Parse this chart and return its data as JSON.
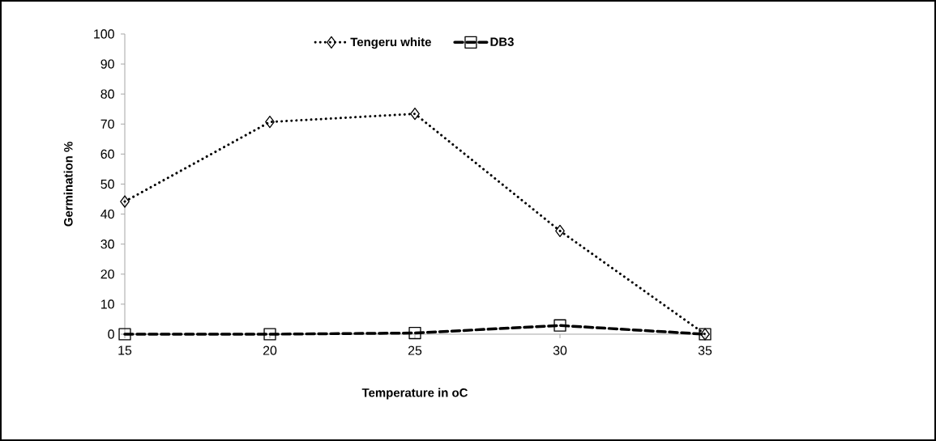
{
  "chart_data": {
    "type": "line",
    "xlabel": "Temperature in oC",
    "ylabel": "Germination %",
    "x": [
      15,
      20,
      25,
      30,
      35
    ],
    "xlim": [
      15,
      35
    ],
    "xticks": [
      15,
      20,
      25,
      30,
      35
    ],
    "ylim": [
      0,
      100
    ],
    "yticks": [
      0,
      10,
      20,
      30,
      40,
      50,
      60,
      70,
      80,
      90,
      100
    ],
    "grid": false,
    "legend": "top",
    "series": [
      {
        "name": "Tengeru white",
        "color": "#000000",
        "values": [
          44.2,
          70.7,
          73.4,
          34.4,
          0
        ],
        "marker": "diamond",
        "line_style": "dotted"
      },
      {
        "name": "DB3",
        "color": "#000000",
        "values": [
          0,
          0,
          0.4,
          2.9,
          0
        ],
        "marker": "square",
        "line_style": "dashed"
      }
    ]
  }
}
